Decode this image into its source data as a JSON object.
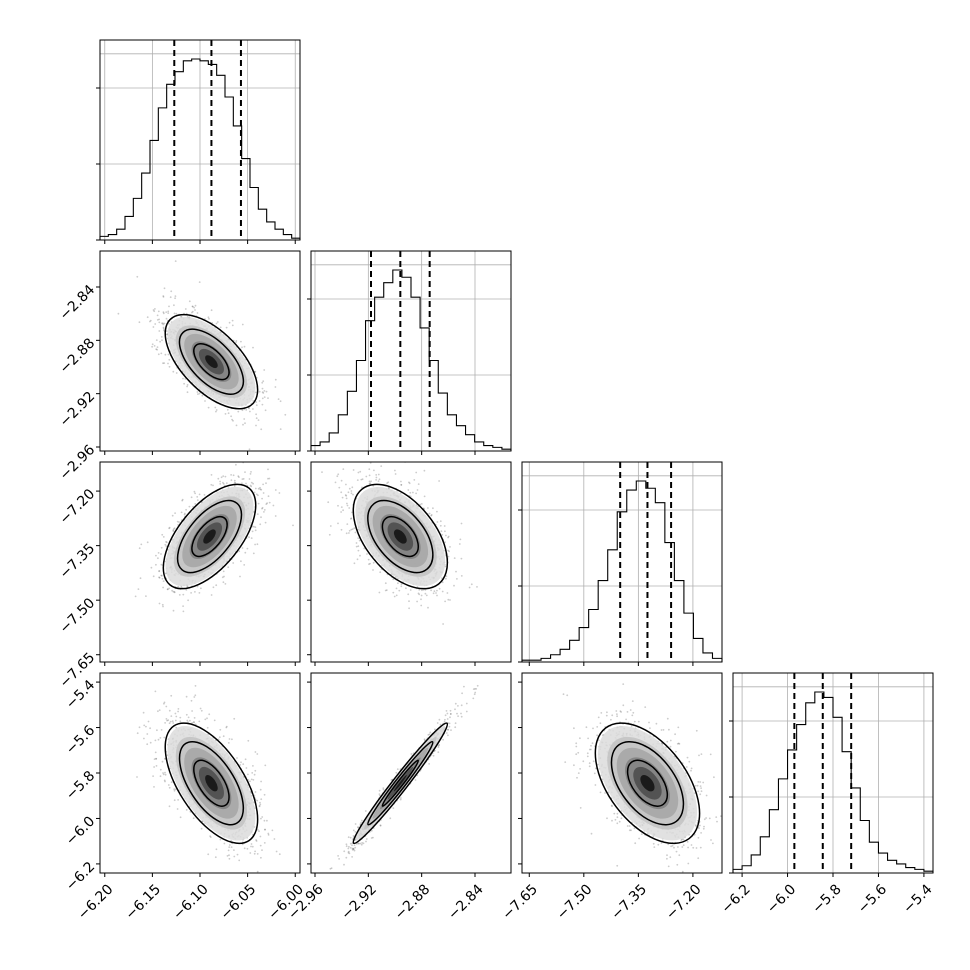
{
  "chart_data": {
    "type": "corner",
    "title": "",
    "parameters": [
      {
        "range": [
          -6.205,
          -5.995
        ],
        "ticks": [
          -6.2,
          -6.15,
          -6.1,
          -6.05,
          -6.0
        ],
        "tick_labels": [
          "−6.20",
          "−6.15",
          "−6.10",
          "−6.05",
          "−6.00"
        ],
        "quantiles": [
          -6.127,
          -6.088,
          -6.057
        ],
        "hist_heights": [
          0.02,
          0.03,
          0.06,
          0.13,
          0.23,
          0.37,
          0.55,
          0.73,
          0.86,
          0.93,
          0.99,
          1.0,
          0.99,
          0.97,
          0.91,
          0.79,
          0.63,
          0.45,
          0.29,
          0.17,
          0.1,
          0.06,
          0.03,
          0.01
        ]
      },
      {
        "range": [
          -2.963,
          -2.813
        ],
        "ticks": [
          -2.96,
          -2.92,
          -2.88,
          -2.84
        ],
        "tick_labels": [
          "−2.96",
          "−2.92",
          "−2.88",
          "−2.84"
        ],
        "quantiles": [
          -2.918,
          -2.896,
          -2.874
        ],
        "hist_heights": [
          0.03,
          0.05,
          0.1,
          0.2,
          0.33,
          0.5,
          0.72,
          0.85,
          0.93,
          1.0,
          0.96,
          0.85,
          0.68,
          0.5,
          0.32,
          0.2,
          0.14,
          0.09,
          0.05,
          0.03,
          0.02,
          0.01
        ]
      },
      {
        "range": [
          -7.67,
          -7.12
        ],
        "ticks": [
          -7.65,
          -7.5,
          -7.35,
          -7.2
        ],
        "tick_labels": [
          "−7.65",
          "−7.50",
          "−7.35",
          "−7.20"
        ],
        "quantiles": [
          -7.4,
          -7.325,
          -7.26
        ],
        "hist_heights": [
          0.01,
          0.01,
          0.02,
          0.04,
          0.07,
          0.12,
          0.19,
          0.29,
          0.45,
          0.62,
          0.83,
          0.95,
          1.0,
          0.96,
          0.88,
          0.66,
          0.45,
          0.27,
          0.13,
          0.05,
          0.02
        ]
      },
      {
        "range": [
          -6.24,
          -5.36
        ],
        "ticks": [
          -6.2,
          -6.0,
          -5.8,
          -5.6,
          -5.4
        ],
        "tick_labels": [
          "−6.2",
          "−6.0",
          "−5.8",
          "−5.6",
          "−5.4"
        ],
        "quantiles": [
          -5.97,
          -5.845,
          -5.72
        ],
        "hist_heights": [
          0.02,
          0.04,
          0.1,
          0.2,
          0.35,
          0.52,
          0.68,
          0.82,
          0.94,
          1.0,
          0.97,
          0.86,
          0.67,
          0.47,
          0.29,
          0.17,
          0.11,
          0.07,
          0.05,
          0.03,
          0.02,
          0.01
        ]
      }
    ],
    "pairs": [
      {
        "x_param": 0,
        "y_param": 1,
        "correlation": -0.6,
        "center": [
          -6.088,
          -2.896
        ],
        "spread": [
          0.022,
          0.016
        ]
      },
      {
        "x_param": 0,
        "y_param": 2,
        "correlation": 0.6,
        "center": [
          -6.09,
          -7.325
        ],
        "spread": [
          0.022,
          0.065
        ]
      },
      {
        "x_param": 1,
        "y_param": 2,
        "correlation": -0.5,
        "center": [
          -2.896,
          -7.325
        ],
        "spread": [
          0.016,
          0.065
        ]
      },
      {
        "x_param": 0,
        "y_param": 3,
        "correlation": -0.6,
        "center": [
          -6.088,
          -5.845
        ],
        "spread": [
          0.022,
          0.12
        ]
      },
      {
        "x_param": 1,
        "y_param": 3,
        "correlation": 0.98,
        "center": [
          -2.896,
          -5.845
        ],
        "spread": [
          0.016,
          0.12
        ]
      },
      {
        "x_param": 2,
        "y_param": 3,
        "correlation": -0.5,
        "center": [
          -7.325,
          -5.845
        ],
        "spread": [
          0.065,
          0.12
        ]
      }
    ],
    "contour_levels_sigma": [
      0.8,
      1.45,
      2.1
    ],
    "grid": true,
    "legend": "none"
  }
}
